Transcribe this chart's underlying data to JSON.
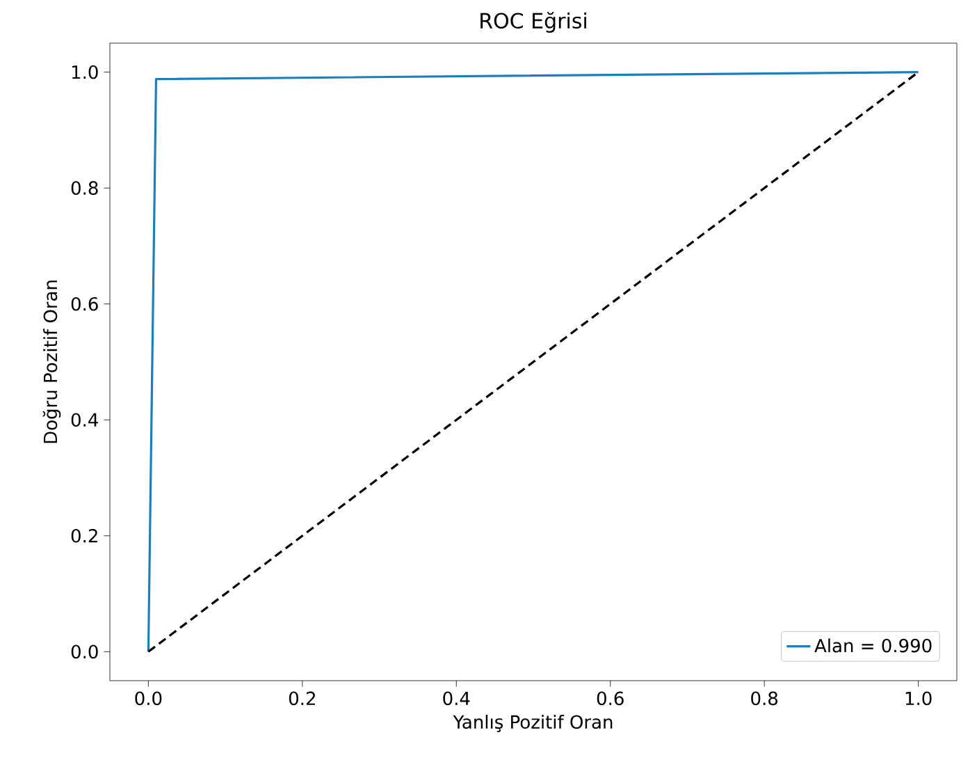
{
  "chart_data": {
    "type": "line",
    "title": "ROC Eğrisi",
    "xlabel": "Yanlış Pozitif Oran",
    "ylabel": "Doğru Pozitif Oran",
    "series": [
      {
        "name": "Alan = 0.990",
        "color": "#1a80bb",
        "x": [
          0,
          0.01,
          1
        ],
        "values": [
          0,
          0.988,
          1
        ],
        "line_style": "solid"
      },
      {
        "color": "#000000",
        "x": [
          0,
          1
        ],
        "values": [
          0,
          1
        ],
        "line_style": "dashed"
      }
    ],
    "xlim": [
      -0.05,
      1.05
    ],
    "ylim": [
      -0.05,
      1.05
    ],
    "xticks": [
      {
        "value": 0,
        "label": "0.0"
      },
      {
        "value": 0.2,
        "label": "0.2"
      },
      {
        "value": 0.4,
        "label": "0.4"
      },
      {
        "value": 0.6,
        "label": "0.6"
      },
      {
        "value": 0.8,
        "label": "0.8"
      },
      {
        "value": 1,
        "label": "1.0"
      }
    ],
    "yticks": [
      {
        "value": 0,
        "label": "0.0"
      },
      {
        "value": 0.2,
        "label": "0.2"
      },
      {
        "value": 0.4,
        "label": "0.4"
      },
      {
        "value": 0.6,
        "label": "0.6"
      },
      {
        "value": 0.8,
        "label": "0.8"
      },
      {
        "value": 1,
        "label": "1.0"
      }
    ],
    "legend": "bottom right",
    "grid": false,
    "marker": "none"
  }
}
